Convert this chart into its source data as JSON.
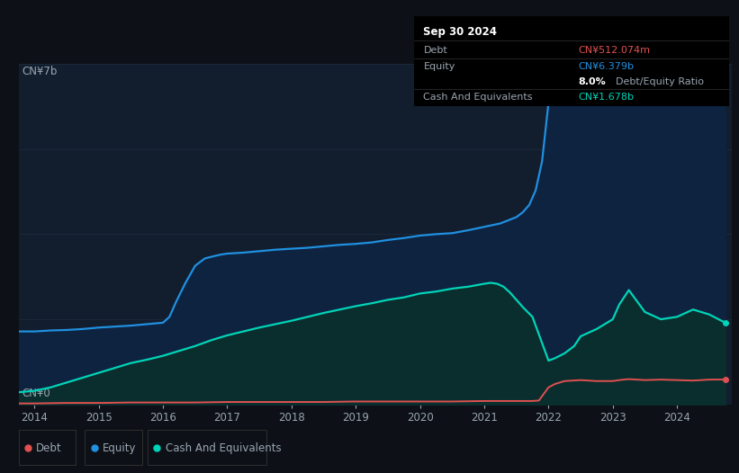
{
  "background_color": "#0d1117",
  "plot_bg_color": "#121d2e",
  "tooltip_date": "Sep 30 2024",
  "tooltip_debt_label": "Debt",
  "tooltip_debt_value": "CN¥512.074m",
  "tooltip_equity_label": "Equity",
  "tooltip_equity_value": "CN¥6.379b",
  "tooltip_ratio_value": "8.0%",
  "tooltip_ratio_label": "Debt/Equity Ratio",
  "tooltip_cash_label": "Cash And Equivalents",
  "tooltip_cash_value": "CN¥1.678b",
  "ylabel_top": "CN¥7b",
  "ylabel_bottom": "CN¥0",
  "x_ticks": [
    "2014",
    "2015",
    "2016",
    "2017",
    "2018",
    "2019",
    "2020",
    "2021",
    "2022",
    "2023",
    "2024"
  ],
  "legend_labels": [
    "Debt",
    "Equity",
    "Cash And Equivalents"
  ],
  "debt_color": "#e05050",
  "equity_color": "#2090e0",
  "cash_color": "#00d4b8",
  "equity_fill_color": "#0e2340",
  "cash_fill_color": "#0a2e2e",
  "grid_color": "#1a2a3a",
  "text_color": "#9aa5b0",
  "ylim": [
    0,
    7
  ],
  "xlim": [
    2013.75,
    2024.85
  ],
  "equity_x": [
    2013.75,
    2014.0,
    2014.25,
    2014.5,
    2014.75,
    2015.0,
    2015.25,
    2015.5,
    2015.75,
    2016.0,
    2016.1,
    2016.2,
    2016.35,
    2016.5,
    2016.65,
    2016.8,
    2016.9,
    2017.0,
    2017.25,
    2017.5,
    2017.75,
    2018.0,
    2018.25,
    2018.5,
    2018.75,
    2019.0,
    2019.25,
    2019.5,
    2019.75,
    2020.0,
    2020.25,
    2020.5,
    2020.75,
    2021.0,
    2021.25,
    2021.5,
    2021.6,
    2021.7,
    2021.8,
    2021.9,
    2022.0,
    2022.1,
    2022.25,
    2022.5,
    2022.75,
    2023.0,
    2023.1,
    2023.25,
    2023.5,
    2023.75,
    2024.0,
    2024.25,
    2024.5,
    2024.75
  ],
  "equity_y": [
    1.5,
    1.5,
    1.52,
    1.53,
    1.55,
    1.58,
    1.6,
    1.62,
    1.65,
    1.68,
    1.8,
    2.1,
    2.5,
    2.85,
    3.0,
    3.05,
    3.08,
    3.1,
    3.12,
    3.15,
    3.18,
    3.2,
    3.22,
    3.25,
    3.28,
    3.3,
    3.33,
    3.38,
    3.42,
    3.47,
    3.5,
    3.52,
    3.58,
    3.65,
    3.72,
    3.85,
    3.95,
    4.1,
    4.4,
    5.0,
    6.2,
    6.5,
    6.55,
    6.5,
    6.4,
    6.45,
    6.55,
    6.65,
    6.3,
    6.4,
    6.5,
    6.6,
    6.45,
    6.38
  ],
  "cash_x": [
    2013.75,
    2014.0,
    2014.25,
    2014.5,
    2014.75,
    2015.0,
    2015.25,
    2015.5,
    2015.75,
    2016.0,
    2016.25,
    2016.5,
    2016.75,
    2017.0,
    2017.25,
    2017.5,
    2017.75,
    2018.0,
    2018.25,
    2018.5,
    2018.75,
    2019.0,
    2019.25,
    2019.5,
    2019.75,
    2020.0,
    2020.25,
    2020.5,
    2020.75,
    2021.0,
    2021.1,
    2021.2,
    2021.3,
    2021.4,
    2021.5,
    2021.6,
    2021.75,
    2022.0,
    2022.1,
    2022.25,
    2022.4,
    2022.5,
    2022.75,
    2023.0,
    2023.1,
    2023.25,
    2023.5,
    2023.75,
    2024.0,
    2024.25,
    2024.5,
    2024.75
  ],
  "cash_y": [
    0.25,
    0.28,
    0.35,
    0.45,
    0.55,
    0.65,
    0.75,
    0.85,
    0.92,
    1.0,
    1.1,
    1.2,
    1.32,
    1.42,
    1.5,
    1.58,
    1.65,
    1.72,
    1.8,
    1.88,
    1.95,
    2.02,
    2.08,
    2.15,
    2.2,
    2.28,
    2.32,
    2.38,
    2.42,
    2.48,
    2.5,
    2.48,
    2.42,
    2.3,
    2.15,
    2.0,
    1.8,
    0.9,
    0.95,
    1.05,
    1.2,
    1.4,
    1.55,
    1.75,
    2.05,
    2.35,
    1.9,
    1.75,
    1.8,
    1.95,
    1.85,
    1.68
  ],
  "debt_x": [
    2013.75,
    2014.0,
    2014.5,
    2015.0,
    2015.5,
    2016.0,
    2016.5,
    2017.0,
    2017.5,
    2018.0,
    2018.5,
    2019.0,
    2019.5,
    2020.0,
    2020.5,
    2021.0,
    2021.5,
    2021.75,
    2021.85,
    2022.0,
    2022.1,
    2022.25,
    2022.5,
    2022.75,
    2023.0,
    2023.1,
    2023.25,
    2023.5,
    2023.75,
    2024.0,
    2024.25,
    2024.5,
    2024.75
  ],
  "debt_y": [
    0.02,
    0.02,
    0.03,
    0.03,
    0.04,
    0.04,
    0.04,
    0.05,
    0.05,
    0.05,
    0.05,
    0.06,
    0.06,
    0.06,
    0.06,
    0.07,
    0.07,
    0.07,
    0.08,
    0.35,
    0.42,
    0.48,
    0.5,
    0.48,
    0.48,
    0.5,
    0.52,
    0.5,
    0.51,
    0.5,
    0.49,
    0.51,
    0.512
  ]
}
